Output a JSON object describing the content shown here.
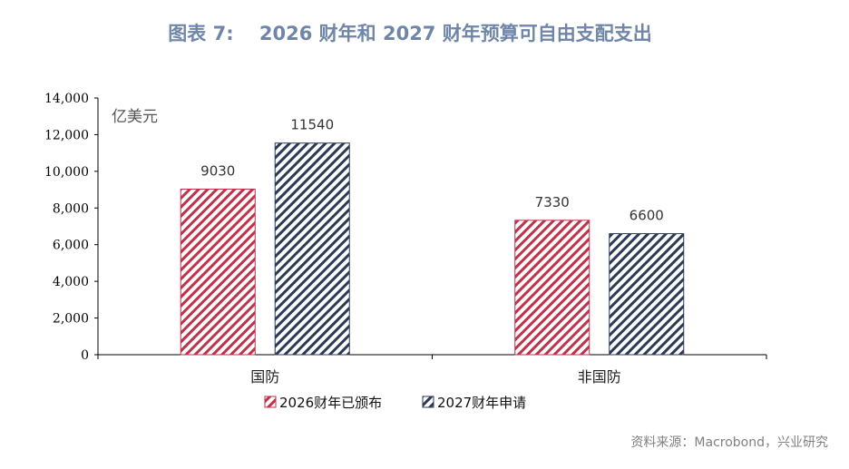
{
  "title": "图表 7:　 2026 财年和 2027 财年预算可自由支配支出",
  "source": "资料来源：Macrobond，兴业研究",
  "colors": {
    "title": "#6f86a8",
    "series1": "#c0314a",
    "series2": "#2b3b55"
  },
  "chart_data": {
    "type": "bar",
    "title": "",
    "unit_label": "亿美元",
    "categories": [
      "国防",
      "非国防"
    ],
    "series": [
      {
        "name": "2026财年已颁布",
        "values": [
          9030,
          7330
        ],
        "pattern": "red-diagonal-hatch"
      },
      {
        "name": "2027财年申请",
        "values": [
          11540,
          6600
        ],
        "pattern": "navy-diagonal-hatch"
      }
    ],
    "ylim": [
      0,
      14000
    ],
    "yticks": [
      "0",
      "2,000",
      "4,000",
      "6,000",
      "8,000",
      "10,000",
      "12,000",
      "14,000"
    ],
    "grid": false,
    "legend_position": "bottom-left"
  }
}
